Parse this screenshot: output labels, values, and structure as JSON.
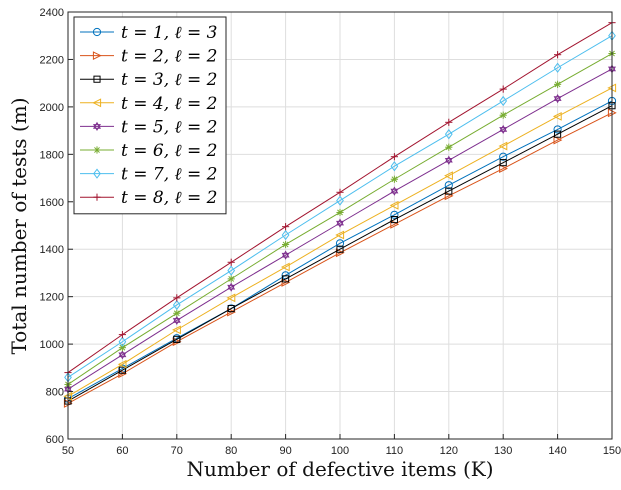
{
  "chart_data": {
    "type": "line",
    "title": "",
    "xlabel": "Number of defective items (K)",
    "ylabel": "Total number of tests (m)",
    "xlim": [
      50,
      150
    ],
    "ylim": [
      600,
      2400
    ],
    "grid": true,
    "legend_position": "top-left",
    "x": [
      50,
      60,
      70,
      80,
      90,
      100,
      110,
      120,
      130,
      140,
      150
    ],
    "x_ticks": [
      "50",
      "60",
      "70",
      "80",
      "90",
      "100",
      "110",
      "120",
      "130",
      "140",
      "150"
    ],
    "y_ticks": [
      "600",
      "800",
      "1000",
      "1200",
      "1400",
      "1600",
      "1800",
      "2000",
      "2200",
      "2400"
    ],
    "series": [
      {
        "name": "t = 1,  ℓ = 3",
        "marker": "circle",
        "color": "#0072BD",
        "values": [
          770,
          897,
          1025,
          1150,
          1290,
          1425,
          1545,
          1670,
          1790,
          1905,
          2025
        ]
      },
      {
        "name": "t = 2,  ℓ = 2",
        "marker": "triangle-right",
        "color": "#D95319",
        "values": [
          750,
          875,
          1010,
          1135,
          1260,
          1385,
          1505,
          1625,
          1740,
          1860,
          1975
        ]
      },
      {
        "name": "t = 3,  ℓ = 2",
        "marker": "square",
        "color": "#000000",
        "values": [
          760,
          890,
          1020,
          1150,
          1275,
          1400,
          1525,
          1645,
          1765,
          1885,
          2005
        ]
      },
      {
        "name": "t = 4,  ℓ = 2",
        "marker": "triangle-left",
        "color": "#EDB120",
        "values": [
          780,
          915,
          1060,
          1195,
          1325,
          1460,
          1585,
          1710,
          1835,
          1960,
          2080
        ]
      },
      {
        "name": "t = 5,  ℓ = 2",
        "marker": "hexagram",
        "color": "#7E2F8E",
        "values": [
          810,
          955,
          1100,
          1240,
          1375,
          1510,
          1645,
          1775,
          1905,
          2035,
          2160
        ]
      },
      {
        "name": "t = 6,  ℓ = 2",
        "marker": "asterisk",
        "color": "#77AC30",
        "values": [
          830,
          985,
          1130,
          1275,
          1420,
          1555,
          1695,
          1830,
          1965,
          2095,
          2225
        ]
      },
      {
        "name": "t = 7,  ℓ = 2",
        "marker": "diamond",
        "color": "#4DBEEE",
        "values": [
          860,
          1010,
          1165,
          1310,
          1460,
          1605,
          1750,
          1885,
          2025,
          2165,
          2300
        ]
      },
      {
        "name": "t = 8,  ℓ = 2",
        "marker": "plus",
        "color": "#A2142F",
        "values": [
          880,
          1040,
          1195,
          1345,
          1495,
          1640,
          1790,
          1935,
          2075,
          2220,
          2355
        ]
      }
    ]
  }
}
